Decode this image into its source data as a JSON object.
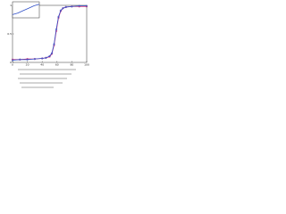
{
  "chart_data": [
    {
      "type": "line",
      "x": [
        0,
        10,
        20,
        30,
        40,
        45,
        50,
        53,
        56,
        59,
        62,
        65,
        68,
        72,
        80,
        90,
        100
      ],
      "series": [
        {
          "color": "#e0206a",
          "values": [
            0.05,
            0.05,
            0.06,
            0.06,
            0.07,
            0.08,
            0.1,
            0.15,
            0.3,
            0.55,
            0.78,
            0.9,
            0.95,
            0.97,
            0.98,
            0.98,
            0.98
          ]
        },
        {
          "color": "#3050c8",
          "values": [
            0.04,
            0.05,
            0.05,
            0.06,
            0.07,
            0.08,
            0.11,
            0.16,
            0.32,
            0.58,
            0.8,
            0.91,
            0.95,
            0.97,
            0.98,
            0.99,
            0.99
          ]
        }
      ],
      "xlim": [
        0,
        100
      ],
      "ylim": [
        0,
        1
      ],
      "xticks": [
        0,
        20,
        40,
        60,
        80,
        100
      ],
      "yticks": [
        0,
        0.5,
        1
      ]
    },
    {
      "type": "line",
      "x": [
        0,
        20,
        40,
        60,
        80,
        100
      ],
      "series": [
        {
          "color": "#3050c8",
          "values": [
            0.2,
            0.3,
            0.45,
            0.6,
            0.75,
            0.85
          ]
        }
      ],
      "xlim": [
        0,
        100
      ],
      "ylim": [
        0,
        1
      ]
    }
  ]
}
